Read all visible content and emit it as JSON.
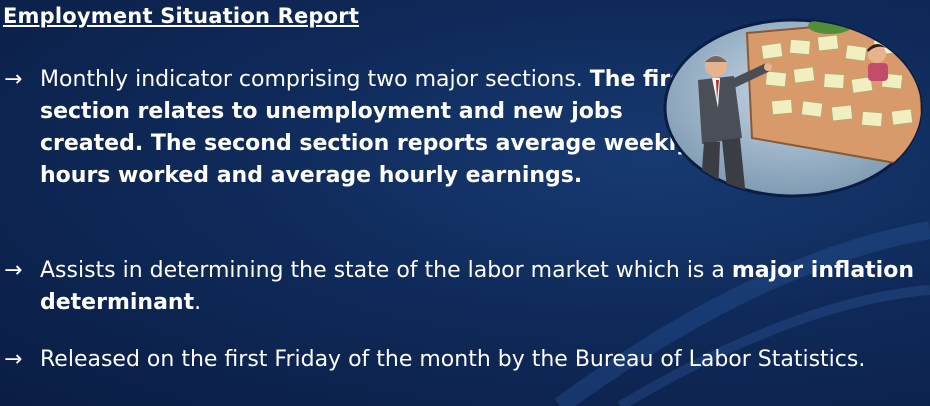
{
  "slide": {
    "title": "Employment Situation Report",
    "arrow": "→",
    "bullets": [
      {
        "plain": "Monthly indicator comprising two major sections. ",
        "bold": "The first section relates to unemployment and new jobs created. The second section reports average weekly hours worked and average hourly earnings.",
        "tail": ""
      },
      {
        "plain": "Assists in determining the state of the labor market which is a ",
        "bold": "major inflation determinant",
        "tail": "."
      },
      {
        "plain": "Released on the first Friday of the month by the Bureau of Labor Statistics.",
        "bold": "",
        "tail": ""
      }
    ]
  },
  "illustration": {
    "icon": "businessman-at-board-icon"
  }
}
